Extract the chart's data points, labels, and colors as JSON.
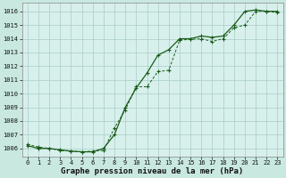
{
  "title": "Graphe pression niveau de la mer (hPa)",
  "bg_color": "#c8e8e0",
  "plot_bg_color": "#d8f0ec",
  "line_color": "#1a5c1a",
  "grid_color": "#a8ccc8",
  "xlim": [
    -0.5,
    23.5
  ],
  "ylim": [
    1005.4,
    1016.6
  ],
  "yticks": [
    1006,
    1007,
    1008,
    1009,
    1010,
    1011,
    1012,
    1013,
    1014,
    1015,
    1016
  ],
  "xticks": [
    0,
    1,
    2,
    3,
    4,
    5,
    6,
    7,
    8,
    9,
    10,
    11,
    12,
    13,
    14,
    15,
    16,
    17,
    18,
    19,
    20,
    21,
    22,
    23
  ],
  "series1_x": [
    0,
    1,
    2,
    3,
    4,
    5,
    6,
    7,
    8,
    9,
    10,
    11,
    12,
    13,
    14,
    15,
    16,
    17,
    18,
    19,
    20,
    21,
    22,
    23
  ],
  "series1_y": [
    1006.3,
    1006.1,
    1006.0,
    1005.85,
    1005.8,
    1005.75,
    1005.8,
    1005.85,
    1007.5,
    1008.8,
    1010.5,
    1010.5,
    1011.6,
    1011.7,
    1013.9,
    1013.95,
    1014.0,
    1013.8,
    1014.0,
    1014.8,
    1015.0,
    1016.0,
    1016.0,
    1015.9
  ],
  "series2_x": [
    0,
    1,
    2,
    3,
    4,
    5,
    6,
    7,
    8,
    9,
    10,
    11,
    12,
    13,
    14,
    15,
    16,
    17,
    18,
    19,
    20,
    21,
    22,
    23
  ],
  "series2_y": [
    1006.2,
    1006.0,
    1006.0,
    1005.9,
    1005.8,
    1005.75,
    1005.75,
    1006.0,
    1007.0,
    1009.0,
    1010.4,
    1011.5,
    1012.8,
    1013.2,
    1014.0,
    1014.0,
    1014.2,
    1014.1,
    1014.2,
    1015.0,
    1016.0,
    1016.1,
    1016.0,
    1016.0
  ],
  "title_fontsize": 6.5,
  "tick_fontsize": 5.0
}
